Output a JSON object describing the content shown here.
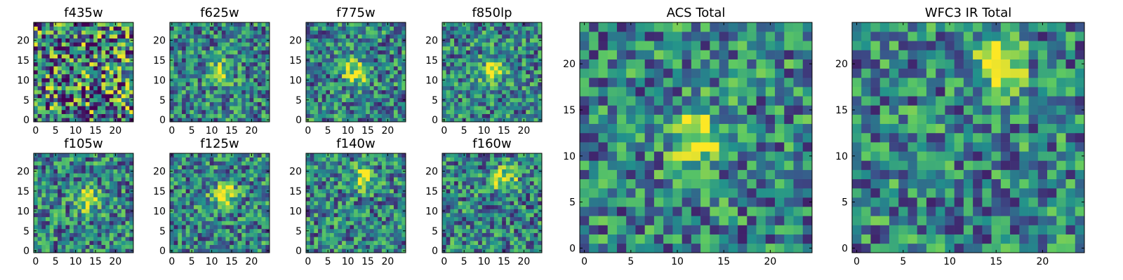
{
  "chart_data": [
    {
      "type": "heatmap",
      "title": "f435w",
      "xticks": [
        "0",
        "5",
        "10",
        "15",
        "20"
      ],
      "yticks": [
        "0",
        "5",
        "10",
        "15",
        "20"
      ],
      "xlim": [
        -0.5,
        24.5
      ],
      "ylim": [
        -0.5,
        24.5
      ],
      "grid_size": 25,
      "colormap": "viridis",
      "source_center": null,
      "description": "noise"
    },
    {
      "type": "heatmap",
      "title": "f625w",
      "xticks": [
        "0",
        "5",
        "10",
        "15",
        "20"
      ],
      "yticks": [
        "0",
        "5",
        "10",
        "15",
        "20"
      ],
      "xlim": [
        -0.5,
        24.5
      ],
      "ylim": [
        -0.5,
        24.5
      ],
      "grid_size": 25,
      "colormap": "viridis",
      "source_center": [
        12,
        12
      ]
    },
    {
      "type": "heatmap",
      "title": "f775w",
      "xticks": [
        "0",
        "5",
        "10",
        "15",
        "20"
      ],
      "yticks": [
        "0",
        "5",
        "10",
        "15",
        "20"
      ],
      "xlim": [
        -0.5,
        24.5
      ],
      "ylim": [
        -0.5,
        24.5
      ],
      "grid_size": 25,
      "colormap": "viridis",
      "source_center": [
        12,
        12
      ]
    },
    {
      "type": "heatmap",
      "title": "f850lp",
      "xticks": [
        "0",
        "5",
        "10",
        "15",
        "20"
      ],
      "yticks": [
        "0",
        "5",
        "10",
        "15",
        "20"
      ],
      "xlim": [
        -0.5,
        24.5
      ],
      "ylim": [
        -0.5,
        24.5
      ],
      "grid_size": 25,
      "colormap": "viridis",
      "source_center": [
        12,
        12
      ]
    },
    {
      "type": "heatmap",
      "title": "f105w",
      "xticks": [
        "0",
        "5",
        "10",
        "15",
        "20"
      ],
      "yticks": [
        "0",
        "5",
        "10",
        "15",
        "20"
      ],
      "xlim": [
        -0.5,
        24.5
      ],
      "ylim": [
        -0.5,
        24.5
      ],
      "grid_size": 25,
      "colormap": "viridis",
      "source_center": [
        13,
        13
      ]
    },
    {
      "type": "heatmap",
      "title": "f125w",
      "xticks": [
        "0",
        "5",
        "10",
        "15",
        "20"
      ],
      "yticks": [
        "0",
        "5",
        "10",
        "15",
        "20"
      ],
      "xlim": [
        -0.5,
        24.5
      ],
      "ylim": [
        -0.5,
        24.5
      ],
      "grid_size": 25,
      "colormap": "viridis",
      "source_center": [
        13,
        14
      ]
    },
    {
      "type": "heatmap",
      "title": "f140w",
      "xticks": [
        "0",
        "5",
        "10",
        "15",
        "20"
      ],
      "yticks": [
        "0",
        "5",
        "10",
        "15",
        "20"
      ],
      "xlim": [
        -0.5,
        24.5
      ],
      "ylim": [
        -0.5,
        24.5
      ],
      "grid_size": 25,
      "colormap": "viridis",
      "source_center": [
        14,
        18
      ]
    },
    {
      "type": "heatmap",
      "title": "f160w",
      "xticks": [
        "0",
        "5",
        "10",
        "15",
        "20"
      ],
      "yticks": [
        "0",
        "5",
        "10",
        "15",
        "20"
      ],
      "xlim": [
        -0.5,
        24.5
      ],
      "ylim": [
        -0.5,
        24.5
      ],
      "grid_size": 25,
      "colormap": "viridis",
      "source_center": [
        15,
        18
      ]
    },
    {
      "type": "heatmap",
      "title": "ACS Total",
      "xticks": [
        "0",
        "5",
        "10",
        "15",
        "20"
      ],
      "yticks": [
        "0",
        "5",
        "10",
        "15",
        "20"
      ],
      "xlim": [
        -0.5,
        24.5
      ],
      "ylim": [
        -0.5,
        24.5
      ],
      "grid_size": 25,
      "colormap": "viridis",
      "source_center": [
        12,
        12
      ]
    },
    {
      "type": "heatmap",
      "title": "WFC3 IR Total",
      "xticks": [
        "0",
        "5",
        "10",
        "15",
        "20"
      ],
      "yticks": [
        "0",
        "5",
        "10",
        "15",
        "20"
      ],
      "xlim": [
        -0.5,
        24.5
      ],
      "ylim": [
        -0.5,
        24.5
      ],
      "grid_size": 25,
      "colormap": "viridis",
      "source_center": [
        15,
        20
      ]
    }
  ],
  "colors": {
    "viridis_stops": [
      "#440154",
      "#3b528b",
      "#21918c",
      "#5ec962",
      "#fde725"
    ],
    "axes": "#000000",
    "background": "#ffffff"
  }
}
